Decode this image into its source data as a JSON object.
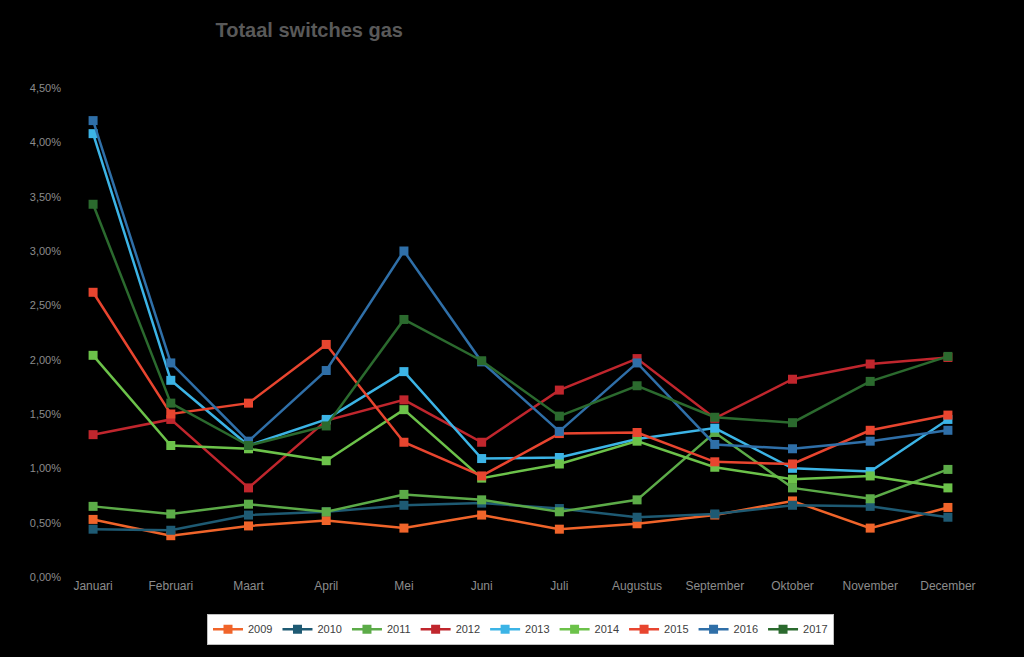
{
  "chart_data": {
    "type": "line",
    "title": "Totaal switches gas",
    "categories": [
      "Januari",
      "Februari",
      "Maart",
      "April",
      "Mei",
      "Juni",
      "Juli",
      "Augustus",
      "September",
      "Oktober",
      "November",
      "December"
    ],
    "series": [
      {
        "name": "2009",
        "color": "#f0642a",
        "values": [
          0.53,
          0.38,
          0.47,
          0.52,
          0.45,
          0.57,
          0.44,
          0.49,
          0.57,
          0.7,
          0.45,
          0.64
        ]
      },
      {
        "name": "2010",
        "color": "#1e5a73",
        "values": [
          0.44,
          0.43,
          0.57,
          0.6,
          0.66,
          0.68,
          0.63,
          0.55,
          0.58,
          0.66,
          0.65,
          0.55
        ]
      },
      {
        "name": "2011",
        "color": "#5cab48",
        "values": [
          0.65,
          0.58,
          0.67,
          0.6,
          0.76,
          0.71,
          0.6,
          0.71,
          1.33,
          0.82,
          0.72,
          0.99
        ]
      },
      {
        "name": "2012",
        "color": "#c0262d",
        "values": [
          1.31,
          1.45,
          0.82,
          1.44,
          1.63,
          1.24,
          1.72,
          2.01,
          1.46,
          1.82,
          1.96,
          2.02
        ]
      },
      {
        "name": "2013",
        "color": "#3cb4e6",
        "values": [
          4.08,
          1.81,
          1.21,
          1.45,
          1.89,
          1.09,
          1.1,
          1.27,
          1.37,
          1.0,
          0.97,
          1.45
        ]
      },
      {
        "name": "2014",
        "color": "#6cc24a",
        "values": [
          2.04,
          1.21,
          1.18,
          1.07,
          1.54,
          0.91,
          1.04,
          1.25,
          1.01,
          0.9,
          0.93,
          0.82
        ]
      },
      {
        "name": "2015",
        "color": "#e8452f",
        "values": [
          2.62,
          1.5,
          1.6,
          2.14,
          1.24,
          0.93,
          1.32,
          1.33,
          1.06,
          1.04,
          1.35,
          1.49
        ]
      },
      {
        "name": "2016",
        "color": "#2f6fa8",
        "values": [
          4.2,
          1.97,
          1.25,
          1.9,
          3.0,
          1.98,
          1.34,
          1.97,
          1.22,
          1.18,
          1.25,
          1.35
        ]
      },
      {
        "name": "2017",
        "color": "#2b6a2e",
        "values": [
          3.43,
          1.6,
          1.21,
          1.39,
          2.37,
          1.99,
          1.48,
          1.76,
          1.47,
          1.42,
          1.8,
          2.03
        ]
      }
    ],
    "ylim": [
      0,
      4.5
    ],
    "yticks": [
      {
        "value": 0,
        "label": "0,00%"
      },
      {
        "value": 0.5,
        "label": "0,50%"
      },
      {
        "value": 1,
        "label": "1,00%"
      },
      {
        "value": 1.5,
        "label": "1,50%"
      },
      {
        "value": 2,
        "label": "2,00%"
      },
      {
        "value": 2.5,
        "label": "2,50%"
      },
      {
        "value": 3,
        "label": "3,00%"
      },
      {
        "value": 3.5,
        "label": "3,50%"
      },
      {
        "value": 4,
        "label": "4,00%"
      },
      {
        "value": 4.5,
        "label": "4,50%"
      }
    ],
    "grid": false,
    "legend": "bottom",
    "marker": "square",
    "line_style": "solid"
  }
}
